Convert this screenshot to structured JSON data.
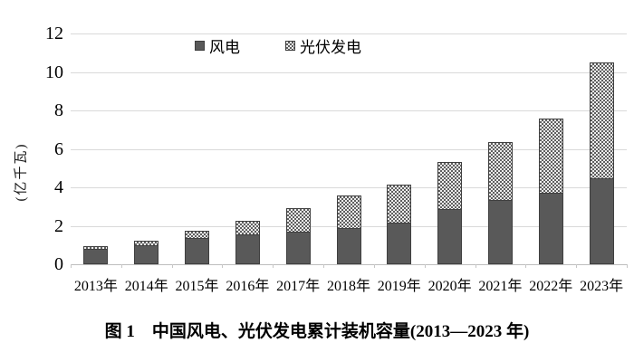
{
  "caption": "图 1　中国风电、光伏发电累计装机容量(2013—2023 年)",
  "chart_data": {
    "type": "bar",
    "stacked": true,
    "title": "",
    "categories": [
      "2013年",
      "2014年",
      "2015年",
      "2016年",
      "2017年",
      "2018年",
      "2019年",
      "2020年",
      "2021年",
      "2022年",
      "2023年"
    ],
    "series": [
      {
        "name": "风电",
        "color": "#595959",
        "border_color": "#3f3f3f",
        "values": [
          0.77,
          0.96,
          1.31,
          1.49,
          1.64,
          1.84,
          2.1,
          2.81,
          3.28,
          3.65,
          4.41
        ]
      },
      {
        "name": "光伏发电",
        "pattern": "checkerboard",
        "pattern_fg": "#5f5f5f",
        "pattern_bg": "#ececec",
        "border_color": "#3f3f3f",
        "values": [
          0.19,
          0.28,
          0.43,
          0.77,
          1.3,
          1.74,
          2.04,
          2.53,
          3.06,
          3.93,
          6.09
        ]
      }
    ],
    "totals": [
      0.96,
      1.24,
      1.74,
      2.26,
      2.94,
      3.58,
      4.14,
      5.34,
      6.34,
      7.58,
      10.5
    ],
    "xlabel": "",
    "ylabel": "(亿千瓦)",
    "ylim": [
      0,
      12
    ],
    "y_ticks": [
      0,
      2,
      4,
      6,
      8,
      10,
      12
    ],
    "grid": true,
    "legend_position": "top-center",
    "gridline_color": "#d9d9d9",
    "axis_line_color": "#bdbdbd",
    "text_color": "#000000"
  }
}
